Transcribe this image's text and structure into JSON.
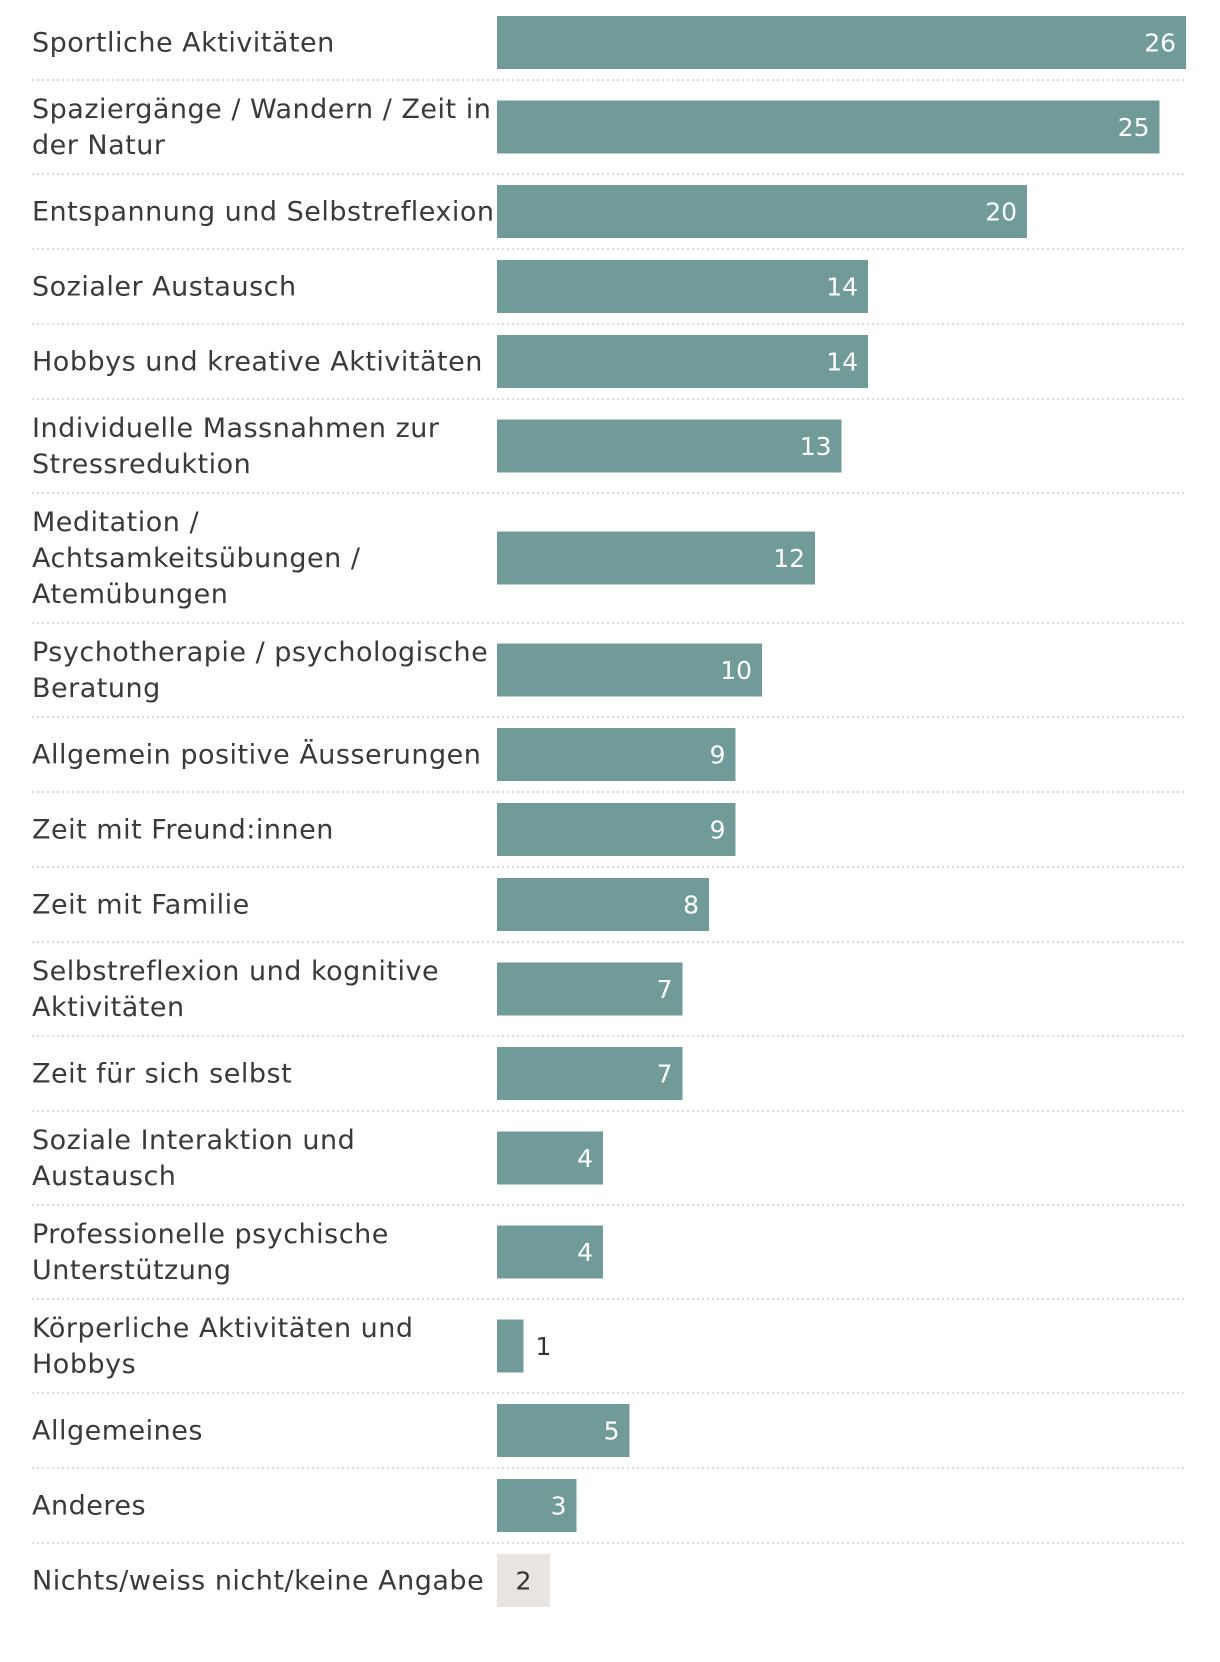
{
  "chart_data": {
    "type": "bar",
    "orientation": "horizontal",
    "title": "",
    "xlabel": "",
    "ylabel": "",
    "xlim": [
      0,
      26
    ],
    "grid": false,
    "categories": [
      "Sportliche Aktivitäten",
      "Spaziergänge / Wandern / Zeit in der Natur",
      "Entspannung und Selbstreflexion",
      "Sozialer Austausch",
      "Hobbys und kreative Aktivitäten",
      "Individuelle Massnahmen zur Stressreduktion",
      "Meditation / Achtsamkeitsübungen / Atemübungen",
      "Psychotherapie / psychologische Beratung",
      "Allgemein positive Äusserungen",
      "Zeit mit Freund:innen",
      "Zeit mit Familie",
      "Selbstreflexion und kognitive Aktivitäten",
      "Zeit für sich selbst",
      "Soziale Interaktion und Austausch",
      "Professionelle psychische Unterstützung",
      "Körperliche Aktivitäten und Hobbys",
      "Allgemeines",
      "Anderes",
      "Nichts/weiss nicht/keine Angabe"
    ],
    "label_lines": [
      [
        "Sportliche Aktivitäten"
      ],
      [
        "Spaziergänge / Wandern / Zeit in",
        "der Natur"
      ],
      [
        "Entspannung und Selbstreflexion"
      ],
      [
        "Sozialer Austausch"
      ],
      [
        "Hobbys und kreative Aktivitäten"
      ],
      [
        "Individuelle Massnahmen zur",
        "Stressreduktion"
      ],
      [
        "Meditation /",
        "Achtsamkeitsübungen /",
        "Atemübungen"
      ],
      [
        "Psychotherapie / psychologische",
        "Beratung"
      ],
      [
        "Allgemein positive Äusserungen"
      ],
      [
        "Zeit mit Freund:innen"
      ],
      [
        "Zeit mit Familie"
      ],
      [
        "Selbstreflexion und kognitive",
        "Aktivitäten"
      ],
      [
        "Zeit für sich selbst"
      ],
      [
        "Soziale Interaktion und",
        "Austausch"
      ],
      [
        "Professionelle psychische",
        "Unterstützung"
      ],
      [
        "Körperliche Aktivitäten und",
        "Hobbys"
      ],
      [
        "Allgemeines"
      ],
      [
        "Anderes"
      ],
      [
        "Nichts/weiss nicht/keine Angabe"
      ]
    ],
    "values": [
      26,
      25,
      20,
      14,
      14,
      13,
      12,
      10,
      9,
      9,
      8,
      7,
      7,
      4,
      4,
      1,
      5,
      3,
      2
    ],
    "highlight": [
      false,
      false,
      false,
      false,
      false,
      false,
      false,
      false,
      false,
      false,
      false,
      false,
      false,
      false,
      false,
      false,
      false,
      false,
      true
    ],
    "colors": {
      "bar": "#709b99",
      "bar_muted": "#e8e4e1",
      "label_inside": "#ffffff",
      "label_outside": "#333333"
    }
  }
}
